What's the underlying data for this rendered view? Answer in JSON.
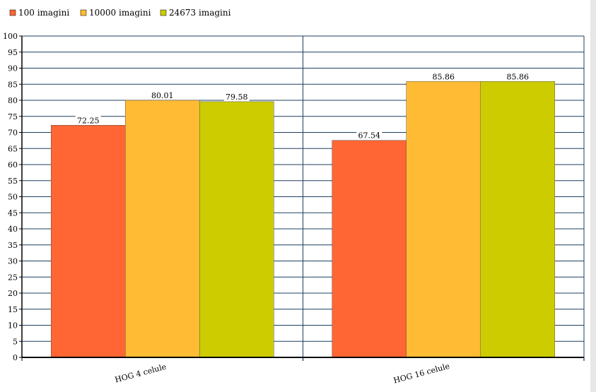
{
  "chart_data": {
    "type": "bar",
    "categories": [
      "HOG 4 celule",
      "HOG 16 celule"
    ],
    "series": [
      {
        "name": "100 imagini",
        "values": [
          72.25,
          67.54
        ],
        "color": "#ff6633"
      },
      {
        "name": "10000 imagini",
        "values": [
          80.01,
          85.86
        ],
        "color": "#ffbb33"
      },
      {
        "name": "24673 imagini",
        "values": [
          79.58,
          85.86
        ],
        "color": "#cccc00"
      }
    ],
    "data_labels": [
      [
        "72.25",
        "67.54"
      ],
      [
        "80.01",
        "85.86"
      ],
      [
        "79.58",
        "85.86"
      ]
    ],
    "yticks": [
      "0",
      "5",
      "10",
      "15",
      "20",
      "25",
      "30",
      "35",
      "40",
      "45",
      "50",
      "55",
      "60",
      "65",
      "70",
      "75",
      "80",
      "85",
      "90",
      "95",
      "100"
    ],
    "ylim": [
      0,
      100
    ],
    "grid": true,
    "legend_position": "top-left",
    "gridline_color": "#1f3f5f",
    "axis_color": "#000000"
  }
}
